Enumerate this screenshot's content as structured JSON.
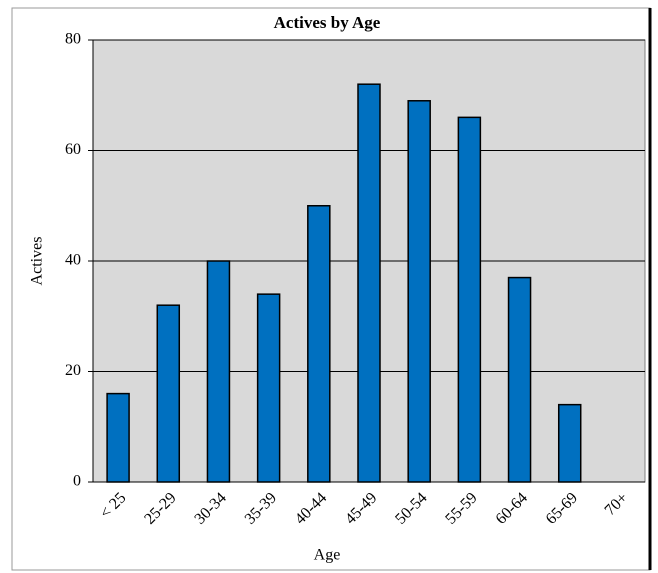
{
  "chart_data": {
    "type": "bar",
    "title": "Actives by Age",
    "x_label": "Age",
    "y_label": "Actives",
    "categories": [
      "< 25",
      "25-29",
      "30-34",
      "35-39",
      "40-44",
      "45-49",
      "50-54",
      "55-59",
      "60-64",
      "65-69",
      "70+"
    ],
    "values": [
      16,
      32,
      40,
      34,
      50,
      72,
      69,
      66,
      37,
      14,
      0
    ],
    "color": "#0070c0",
    "ylim": [
      0,
      80
    ],
    "yticks": [
      0,
      20,
      40,
      60,
      80
    ],
    "grid": true
  }
}
